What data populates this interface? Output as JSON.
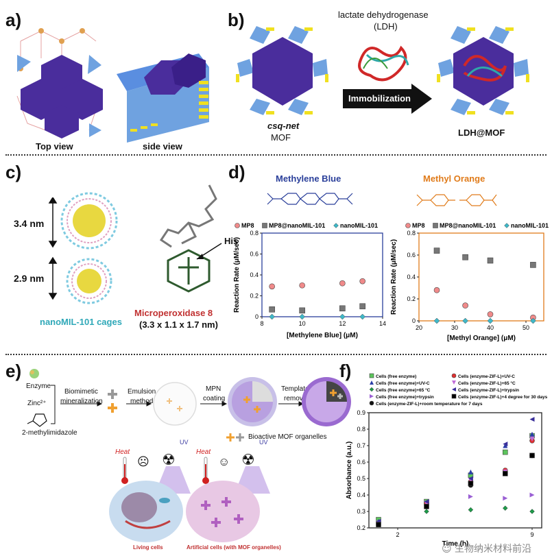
{
  "panels": {
    "a": {
      "label": "a)",
      "top_view": "Top view",
      "side_view": "side view"
    },
    "b": {
      "label": "b)",
      "enzyme_name": "lactate dehydrogenase",
      "enzyme_abbr": "(LDH)",
      "arrow_text": "Immobilization",
      "left_caption_1": "csq-net",
      "left_caption_2": "MOF",
      "right_caption": "LDH@MOF"
    },
    "c": {
      "label": "c)",
      "dim_top": "3.4 nm",
      "dim_bottom": "2.9 nm",
      "his": "His",
      "cages": "nanoMIL-101 cages",
      "mp8": "Microperoxidase 8",
      "mp8_dims": "(3.3 x 1.1 x 1.7 nm)"
    },
    "d": {
      "label": "d)",
      "mb_title": "Methylene Blue",
      "mo_title": "Methyl Orange",
      "mb_color": "#2a3f9a",
      "mo_color": "#e07b1a"
    },
    "e": {
      "label": "e)",
      "enzyme": "Enzyme",
      "zinc": "Zinc²⁺",
      "ligand": "2-methylimidazole",
      "step1a": "Biomimetic",
      "step1b": "mineralization",
      "step2a": "Emulsion",
      "step2b": "method",
      "step3a": "MPN",
      "step3b": "coating",
      "step4a": "Template",
      "step4b": "removal",
      "organelles": "Bioactive MOF organelles",
      "heat1": "Heat",
      "heat2": "Heat",
      "uv1": "UV",
      "uv2": "UV",
      "living": "Living cells",
      "artificial": "Artificial cells (with MOF organelles)"
    },
    "f": {
      "label": "f)"
    }
  },
  "watermark": "生物纳米材料前沿",
  "chart_data": [
    {
      "id": "d-left",
      "type": "scatter",
      "title": "",
      "xlabel": "[Methylene Blue] (μM)",
      "ylabel": "Reaction Rate (μM/sec)",
      "xlim": [
        8,
        14
      ],
      "ylim": [
        0,
        0.8
      ],
      "xticks": [
        8,
        10,
        12,
        14
      ],
      "yticks": [
        0,
        0.2,
        0.4,
        0.6,
        0.8
      ],
      "frame_color": "#2a3f9a",
      "legend": [
        "MP8",
        "MP8@nanoMIL-101",
        "nanoMIL-101"
      ],
      "series": [
        {
          "name": "MP8",
          "color": "#f08a8a",
          "marker": "circle",
          "points": [
            [
              8.5,
              0.29
            ],
            [
              10,
              0.3
            ],
            [
              12,
              0.32
            ],
            [
              13,
              0.34
            ]
          ]
        },
        {
          "name": "MP8@nanoMIL-101",
          "color": "#777777",
          "marker": "square",
          "points": [
            [
              8.5,
              0.07
            ],
            [
              10,
              0.06
            ],
            [
              12,
              0.08
            ],
            [
              13,
              0.1
            ]
          ]
        },
        {
          "name": "nanoMIL-101",
          "color": "#3fb8c8",
          "marker": "diamond",
          "points": [
            [
              8.5,
              0.0
            ],
            [
              10,
              0.0
            ],
            [
              12,
              0.0
            ],
            [
              13,
              0.0
            ]
          ]
        }
      ]
    },
    {
      "id": "d-right",
      "type": "scatter",
      "title": "",
      "xlabel": "[Methyl Orange] (μM)",
      "ylabel": "Reaction Rate (μM/sec)",
      "xlim": [
        20,
        55
      ],
      "ylim": [
        0,
        0.8
      ],
      "xticks": [
        20,
        30,
        40,
        50
      ],
      "yticks": [
        0,
        0.2,
        0.4,
        0.6,
        0.8
      ],
      "frame_color": "#e07b1a",
      "legend": [
        "MP8",
        "MP8@nanoMIL-101",
        "nanoMIL-101"
      ],
      "series": [
        {
          "name": "MP8",
          "color": "#f08a8a",
          "marker": "circle",
          "points": [
            [
              25,
              0.28
            ],
            [
              33,
              0.14
            ],
            [
              40,
              0.06
            ],
            [
              52,
              0.03
            ]
          ]
        },
        {
          "name": "MP8@nanoMIL-101",
          "color": "#777777",
          "marker": "square",
          "points": [
            [
              25,
              0.64
            ],
            [
              33,
              0.58
            ],
            [
              40,
              0.55
            ],
            [
              52,
              0.51
            ]
          ]
        },
        {
          "name": "nanoMIL-101",
          "color": "#3fb8c8",
          "marker": "diamond",
          "points": [
            [
              25,
              0.0
            ],
            [
              33,
              0.0
            ],
            [
              40,
              0.0
            ],
            [
              52,
              0.0
            ]
          ]
        }
      ]
    },
    {
      "id": "f",
      "type": "scatter",
      "title": "",
      "xlabel": "Time (h)",
      "ylabel": "Absorbance (a.u.)",
      "xlim": [
        0.5,
        9.5
      ],
      "ylim": [
        0.2,
        0.9
      ],
      "xticks": [
        2,
        9
      ],
      "yticks": [
        0.2,
        0.3,
        0.4,
        0.5,
        0.6,
        0.7,
        0.8,
        0.9
      ],
      "legend_left": [
        "Cells (free enzyme)",
        "Cells (free enzyme)+UV-C",
        "Cells (free enzyme)+65 °C",
        "Cells (free enzyme)+trypsin",
        "Cells (enzyme-ZIF-L)+room temperature for 7 days"
      ],
      "legend_right": [
        "Cells (enzyme-ZIF-L)+UV-C",
        "Cells (enzyme-ZIF-L)+65 °C",
        "Cells (enzyme-ZIF-L)+trypsin",
        "Cells (enzyme-ZIF-L)+4 degree for 30 days"
      ],
      "series": [
        {
          "name": "Cells (free enzyme)",
          "color": "#5cc45c",
          "marker": "square",
          "points": [
            [
              1,
              0.25
            ],
            [
              3.5,
              0.36
            ],
            [
              5.8,
              0.52
            ],
            [
              7.6,
              0.66
            ],
            [
              9,
              0.76
            ]
          ]
        },
        {
          "name": "Cells (free enzyme)+UV-C",
          "color": "#2c3ea8",
          "marker": "triangle",
          "points": [
            [
              1,
              0.24
            ],
            [
              3.5,
              0.35
            ],
            [
              5.8,
              0.54
            ],
            [
              7.6,
              0.7
            ],
            [
              9,
              0.77
            ]
          ]
        },
        {
          "name": "Cells (free enzyme)+65 °C",
          "color": "#1f9a4a",
          "marker": "diamond",
          "points": [
            [
              1,
              0.23
            ],
            [
              3.5,
              0.3
            ],
            [
              5.8,
              0.31
            ],
            [
              7.6,
              0.32
            ],
            [
              9,
              0.3
            ]
          ]
        },
        {
          "name": "Cells (free enzyme)+trypsin",
          "color": "#9a5fd4",
          "marker": "tri-right",
          "points": [
            [
              1,
              0.22
            ],
            [
              3.5,
              0.33
            ],
            [
              5.8,
              0.39
            ],
            [
              7.6,
              0.38
            ],
            [
              9,
              0.4
            ]
          ]
        },
        {
          "name": "Cells (enzyme-ZIF-L)+room temperature for 7 days",
          "color": "#111111",
          "marker": "circle",
          "points": [
            [
              1,
              0.22
            ],
            [
              3.5,
              0.34
            ],
            [
              5.8,
              0.46
            ],
            [
              7.6,
              0.54
            ],
            [
              9,
              0.64
            ]
          ]
        },
        {
          "name": "Cells (enzyme-ZIF-L)+UV-C",
          "color": "#e03030",
          "marker": "circle",
          "points": [
            [
              1,
              0.23
            ],
            [
              3.5,
              0.35
            ],
            [
              5.8,
              0.48
            ],
            [
              7.6,
              0.55
            ],
            [
              9,
              0.73
            ]
          ]
        },
        {
          "name": "Cells (enzyme-ZIF-L)+65 °C",
          "color": "#c06cd8",
          "marker": "tri-down",
          "points": [
            [
              1,
              0.23
            ],
            [
              3.5,
              0.35
            ],
            [
              5.8,
              0.49
            ],
            [
              7.6,
              0.54
            ],
            [
              9,
              0.74
            ]
          ]
        },
        {
          "name": "Cells (enzyme-ZIF-L)+trypsin",
          "color": "#3a2f9a",
          "marker": "tri-left",
          "points": [
            [
              1,
              0.24
            ],
            [
              3.5,
              0.36
            ],
            [
              5.8,
              0.5
            ],
            [
              7.6,
              0.71
            ],
            [
              9,
              0.86
            ]
          ]
        },
        {
          "name": "Cells (enzyme-ZIF-L)+4 degree for 30 days",
          "color": "#000000",
          "marker": "square",
          "points": [
            [
              1,
              0.22
            ],
            [
              3.5,
              0.33
            ],
            [
              5.8,
              0.47
            ],
            [
              7.6,
              0.53
            ],
            [
              9,
              0.64
            ]
          ]
        }
      ]
    }
  ]
}
